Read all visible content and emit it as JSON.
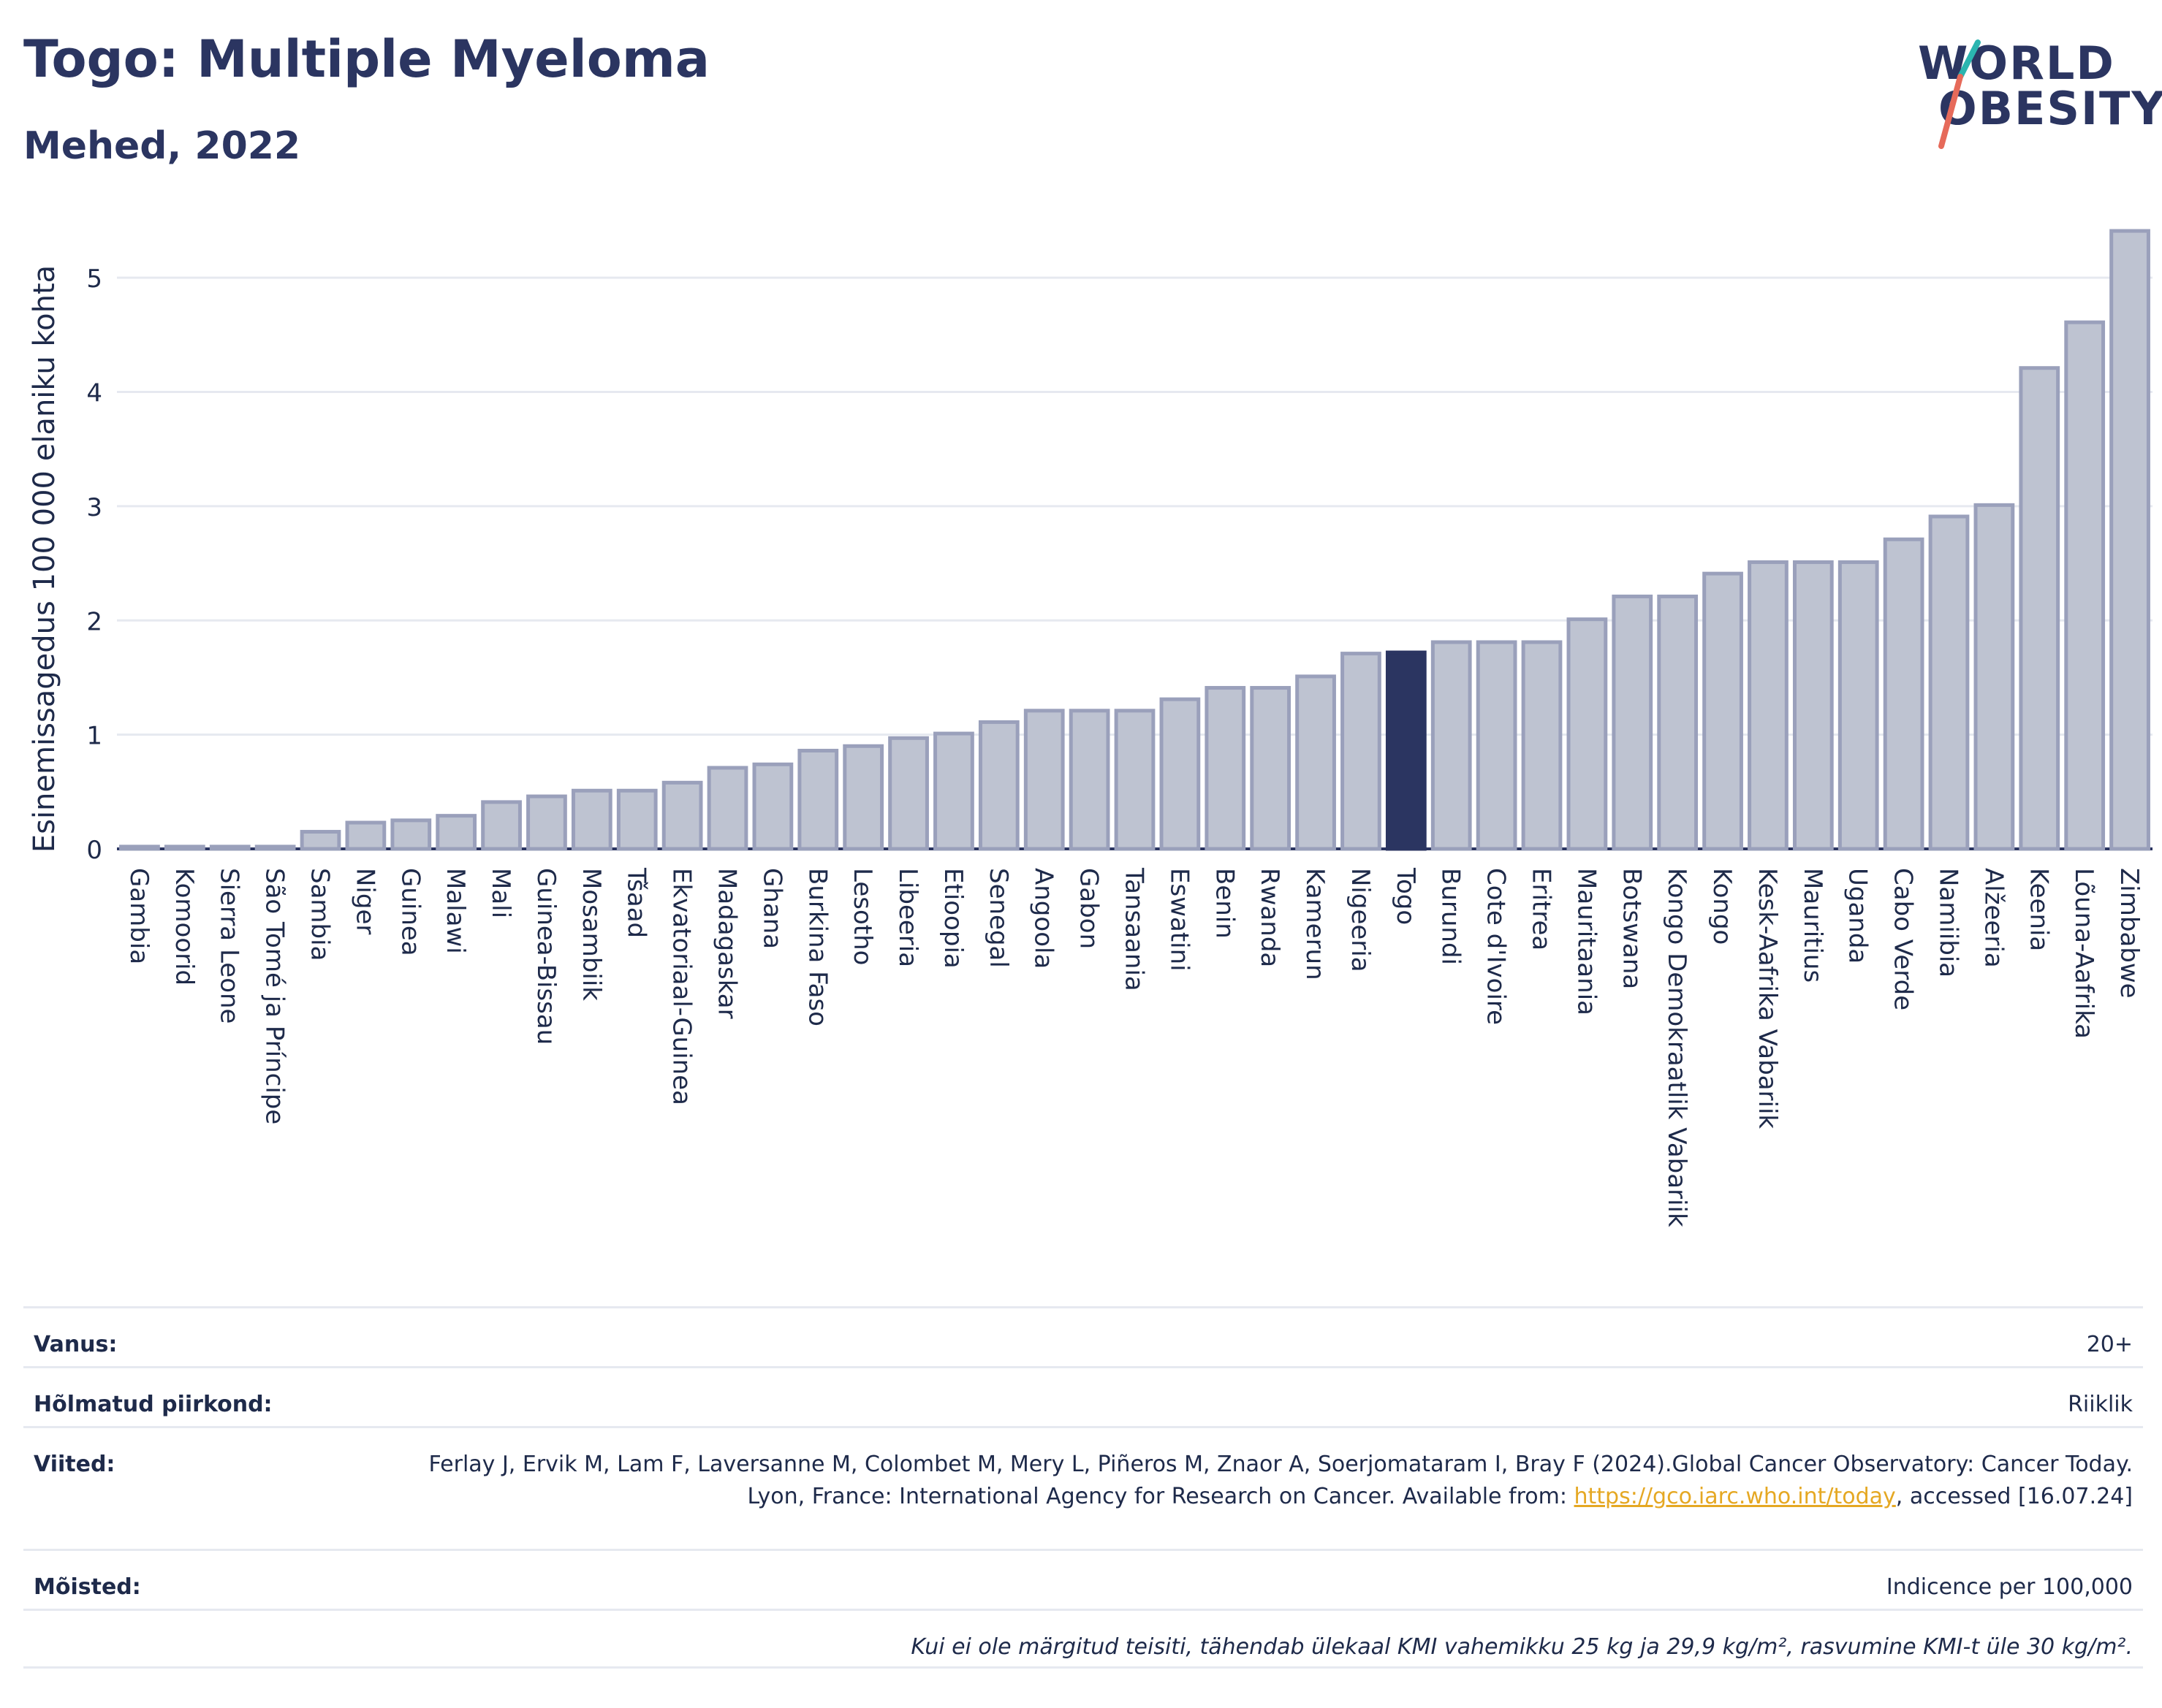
{
  "title": "Togo: Multiple Myeloma",
  "subtitle": "Mehed, 2022",
  "logo": {
    "line1": "WORLD",
    "line2": "OBESITY"
  },
  "colors": {
    "bar": "#bec3d1",
    "bar_edge": "#9aa0bb",
    "highlight": "#2b3561",
    "text": "#1e2a4a",
    "grid": "#e6e9f0"
  },
  "chart_data": {
    "type": "bar",
    "ylabel": "Esinemissagedus 100 000 elaniku kohta",
    "ylim": [
      0,
      5.5
    ],
    "yticks": [
      0,
      1,
      2,
      3,
      4,
      5
    ],
    "grid": true,
    "highlight": "Togo",
    "categories": [
      "Gambia",
      "Komoorid",
      "Sierra Leone",
      "São Tomé ja Príncipe",
      "Sambia",
      "Niger",
      "Guinea",
      "Malawi",
      "Mali",
      "Guinea-Bissau",
      "Mosambiik",
      "Tšaad",
      "Ekvatoriaal-Guinea",
      "Madagaskar",
      "Ghana",
      "Burkina Faso",
      "Lesotho",
      "Libeeria",
      "Etioopia",
      "Senegal",
      "Angoola",
      "Gabon",
      "Tansaania",
      "Eswatini",
      "Benin",
      "Rwanda",
      "Kamerun",
      "Nigeeria",
      "Togo",
      "Burundi",
      "Cote d'Ivoire",
      "Eritrea",
      "Mauritaania",
      "Botswana",
      "Kongo Demokraatlik Vabariik",
      "Kongo",
      "Kesk-Aafrika Vabariik",
      "Mauritius",
      "Uganda",
      "Cabo Verde",
      "Namiibia",
      "Alžeeria",
      "Keenia",
      "Lõuna-Aafrika",
      "Zimbabwe"
    ],
    "values": [
      0.02,
      0.02,
      0.02,
      0.02,
      0.15,
      0.23,
      0.25,
      0.29,
      0.41,
      0.46,
      0.51,
      0.51,
      0.58,
      0.71,
      0.74,
      0.86,
      0.9,
      0.97,
      1.01,
      1.11,
      1.21,
      1.21,
      1.21,
      1.31,
      1.41,
      1.41,
      1.51,
      1.71,
      1.72,
      1.81,
      1.81,
      1.81,
      2.01,
      2.21,
      2.21,
      2.41,
      2.51,
      2.51,
      2.51,
      2.71,
      2.91,
      3.01,
      4.21,
      4.61,
      5.41
    ]
  },
  "info": {
    "age_label": "Vanus:",
    "age_value": "20+",
    "region_label": "Hõlmatud piirkond:",
    "region_value": "Riiklik",
    "refs_label": "Viited:",
    "refs_text": "Ferlay J, Ervik M, Lam F, Laversanne M, Colombet M, Mery L, Piñeros M, Znaor A, Soerjomataram I, Bray F (2024).Global Cancer Observatory: Cancer Today. Lyon, France: International Agency for Research on Cancer. Available from: ",
    "refs_link": "https://gco.iarc.who.int/today",
    "refs_tail": ", accessed [16.07.24]",
    "terms_label": "Mõisted:",
    "terms_value": "Indicence per 100,000",
    "note": "Kui ei ole märgitud teisiti, tähendab ülekaal KMI vahemikku 25 kg ja 29,9 kg/m², rasvumine KMI-t üle 30 kg/m²."
  }
}
